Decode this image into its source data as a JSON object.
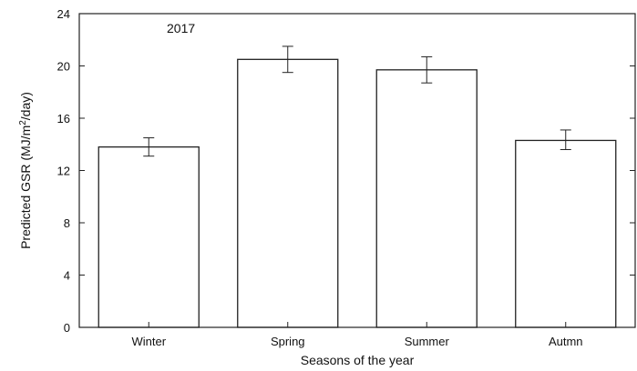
{
  "chart_data": {
    "type": "bar",
    "annotation": "2017",
    "xlabel": "Seasons of the year",
    "ylabel_parts": {
      "before": "Predicted GSR (MJ/m",
      "superscript": "2",
      "after": "/day)"
    },
    "categories": [
      "Winter",
      "Spring",
      "Summer",
      "Autmn"
    ],
    "values": [
      13.8,
      20.5,
      19.7,
      14.3
    ],
    "error_low": [
      13.1,
      19.5,
      18.7,
      13.6
    ],
    "error_high": [
      14.5,
      21.5,
      20.7,
      15.1
    ],
    "ylim": [
      0,
      24
    ],
    "yticks": [
      "0",
      "4",
      "8",
      "12",
      "16",
      "20",
      "24"
    ],
    "bar_fill": "#ffffff",
    "bar_stroke": "#222222",
    "axis_color": "#222222",
    "grid": false,
    "legend": "none"
  }
}
